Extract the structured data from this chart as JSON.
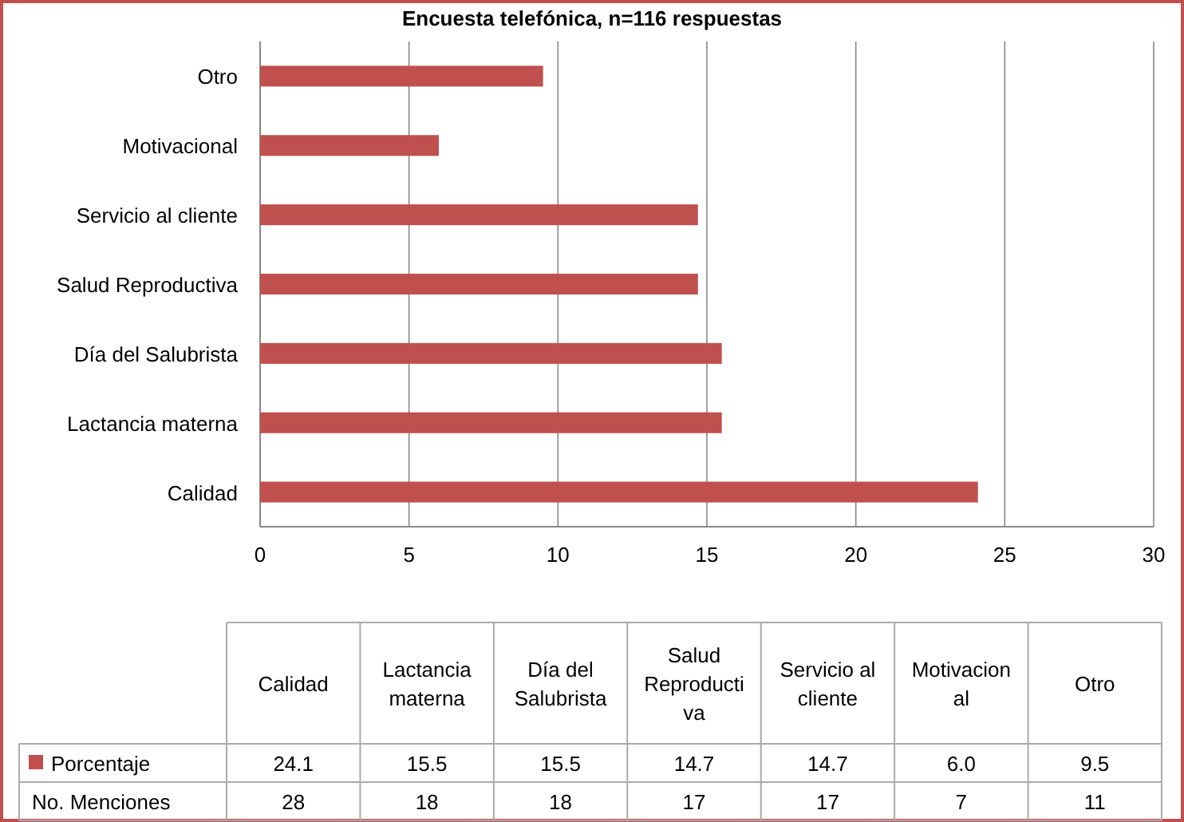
{
  "chart_data": [
    {
      "type": "bar",
      "orientation": "horizontal",
      "title": "Encuesta telefónica, n=116 respuestas",
      "categories": [
        "Otro",
        "Motivacional",
        "Servicio al cliente",
        "Salud Reproductiva",
        "Día del Salubrista",
        "Lactancia materna",
        "Calidad"
      ],
      "series": [
        {
          "color": "#c0504d",
          "values": [
            9.5,
            6.0,
            14.7,
            14.7,
            15.5,
            15.5,
            24.1
          ]
        }
      ],
      "xlim": [
        0,
        30
      ],
      "xticks": [
        0,
        5,
        10,
        15,
        20,
        25,
        30
      ],
      "grid": "x"
    },
    {
      "type": "other",
      "categories": [
        "Calidad",
        "Lactancia materna",
        "Día del Salubrista",
        "Salud Reproductiva",
        "Servicio al cliente",
        "Motivacional",
        "Otro"
      ],
      "series": [
        {
          "name": "Porcentaje",
          "color": "#c0504d",
          "values": [
            24.1,
            15.5,
            15.5,
            14.7,
            14.7,
            6.0,
            9.5
          ],
          "value_labels": [
            "24.1",
            "15.5",
            "15.5",
            "14.7",
            "14.7",
            "6.0",
            "9.5"
          ]
        },
        {
          "name": "No. Menciones",
          "values": [
            28,
            18,
            18,
            17,
            17,
            7,
            11
          ]
        }
      ],
      "data_labels": true
    }
  ]
}
